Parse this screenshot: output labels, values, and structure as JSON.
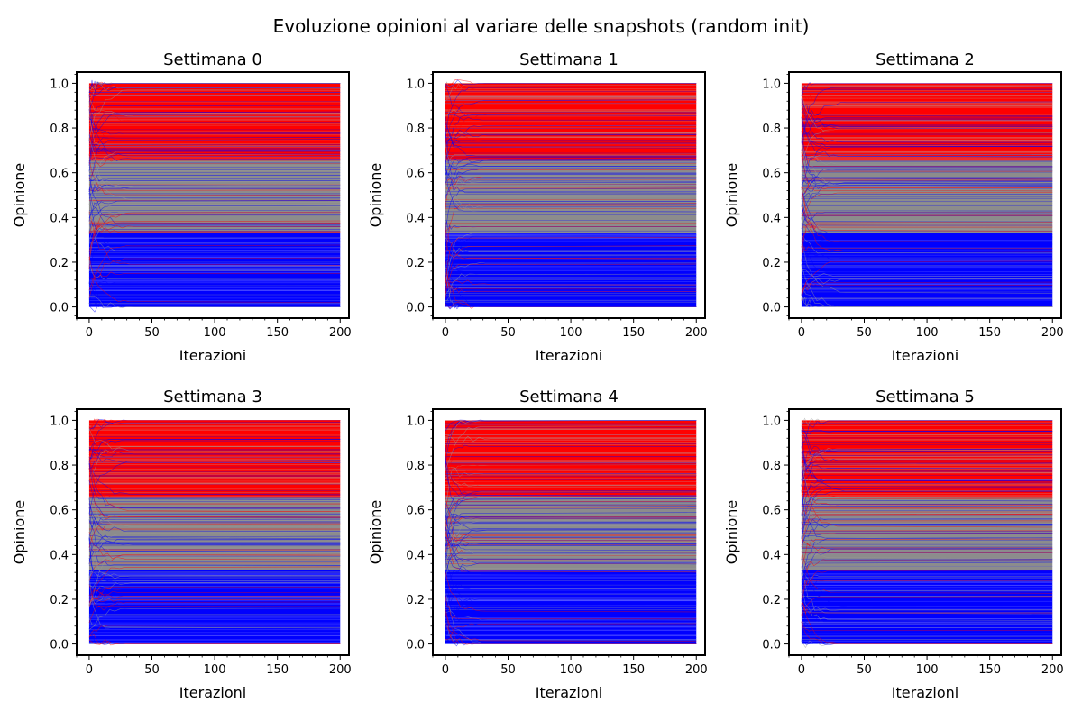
{
  "figure": {
    "suptitle": "Evoluzione opinioni al variare delle snapshots (random init)"
  },
  "colors": {
    "high_opinion": "#ff0000",
    "neutral_opinion": "#8c8c8c",
    "low_opinion": "#0000ff",
    "axes_frame": "#000000"
  },
  "chart_data": [
    {
      "type": "line",
      "title": "Settimana 0",
      "xlabel": "Iterazioni",
      "ylabel": "Opinione",
      "xlim": [
        -10,
        207
      ],
      "ylim": [
        -0.05,
        1.05
      ],
      "xticks": [
        "0",
        "50",
        "100",
        "150",
        "200"
      ],
      "yticks": [
        "0.0",
        "0.2",
        "0.4",
        "0.6",
        "0.8",
        "1.0"
      ],
      "bands": [
        {
          "color_key": "low_opinion",
          "from": 0.0,
          "to": 0.33
        },
        {
          "color_key": "neutral_opinion",
          "from": 0.33,
          "to": 0.66
        },
        {
          "color_key": "high_opinion",
          "from": 0.66,
          "to": 1.0
        }
      ],
      "iterations": [
        0,
        200
      ]
    },
    {
      "type": "line",
      "title": "Settimana 1",
      "xlabel": "Iterazioni",
      "ylabel": "Opinione",
      "xlim": [
        -10,
        207
      ],
      "ylim": [
        -0.05,
        1.05
      ],
      "xticks": [
        "0",
        "50",
        "100",
        "150",
        "200"
      ],
      "yticks": [
        "0.0",
        "0.2",
        "0.4",
        "0.6",
        "0.8",
        "1.0"
      ],
      "bands": [
        {
          "color_key": "low_opinion",
          "from": 0.0,
          "to": 0.33
        },
        {
          "color_key": "neutral_opinion",
          "from": 0.33,
          "to": 0.66
        },
        {
          "color_key": "high_opinion",
          "from": 0.66,
          "to": 1.0
        }
      ],
      "iterations": [
        0,
        200
      ]
    },
    {
      "type": "line",
      "title": "Settimana 2",
      "xlabel": "Iterazioni",
      "ylabel": "Opinione",
      "xlim": [
        -10,
        207
      ],
      "ylim": [
        -0.05,
        1.05
      ],
      "xticks": [
        "0",
        "50",
        "100",
        "150",
        "200"
      ],
      "yticks": [
        "0.0",
        "0.2",
        "0.4",
        "0.6",
        "0.8",
        "1.0"
      ],
      "bands": [
        {
          "color_key": "low_opinion",
          "from": 0.0,
          "to": 0.33
        },
        {
          "color_key": "neutral_opinion",
          "from": 0.33,
          "to": 0.66
        },
        {
          "color_key": "high_opinion",
          "from": 0.66,
          "to": 1.0
        }
      ],
      "iterations": [
        0,
        200
      ]
    },
    {
      "type": "line",
      "title": "Settimana 3",
      "xlabel": "Iterazioni",
      "ylabel": "Opinione",
      "xlim": [
        -10,
        207
      ],
      "ylim": [
        -0.05,
        1.05
      ],
      "xticks": [
        "0",
        "50",
        "100",
        "150",
        "200"
      ],
      "yticks": [
        "0.0",
        "0.2",
        "0.4",
        "0.6",
        "0.8",
        "1.0"
      ],
      "bands": [
        {
          "color_key": "low_opinion",
          "from": 0.0,
          "to": 0.33
        },
        {
          "color_key": "neutral_opinion",
          "from": 0.33,
          "to": 0.66
        },
        {
          "color_key": "high_opinion",
          "from": 0.66,
          "to": 1.0
        }
      ],
      "iterations": [
        0,
        200
      ]
    },
    {
      "type": "line",
      "title": "Settimana 4",
      "xlabel": "Iterazioni",
      "ylabel": "Opinione",
      "xlim": [
        -10,
        207
      ],
      "ylim": [
        -0.05,
        1.05
      ],
      "xticks": [
        "0",
        "50",
        "100",
        "150",
        "200"
      ],
      "yticks": [
        "0.0",
        "0.2",
        "0.4",
        "0.6",
        "0.8",
        "1.0"
      ],
      "bands": [
        {
          "color_key": "low_opinion",
          "from": 0.0,
          "to": 0.33
        },
        {
          "color_key": "neutral_opinion",
          "from": 0.33,
          "to": 0.66
        },
        {
          "color_key": "high_opinion",
          "from": 0.66,
          "to": 1.0
        }
      ],
      "iterations": [
        0,
        200
      ]
    },
    {
      "type": "line",
      "title": "Settimana 5",
      "xlabel": "Iterazioni",
      "ylabel": "Opinione",
      "xlim": [
        -10,
        207
      ],
      "ylim": [
        -0.05,
        1.05
      ],
      "xticks": [
        "0",
        "50",
        "100",
        "150",
        "200"
      ],
      "yticks": [
        "0.0",
        "0.2",
        "0.4",
        "0.6",
        "0.8",
        "1.0"
      ],
      "bands": [
        {
          "color_key": "low_opinion",
          "from": 0.0,
          "to": 0.33
        },
        {
          "color_key": "neutral_opinion",
          "from": 0.33,
          "to": 0.66
        },
        {
          "color_key": "high_opinion",
          "from": 0.66,
          "to": 1.0
        }
      ],
      "iterations": [
        0,
        200
      ]
    }
  ]
}
